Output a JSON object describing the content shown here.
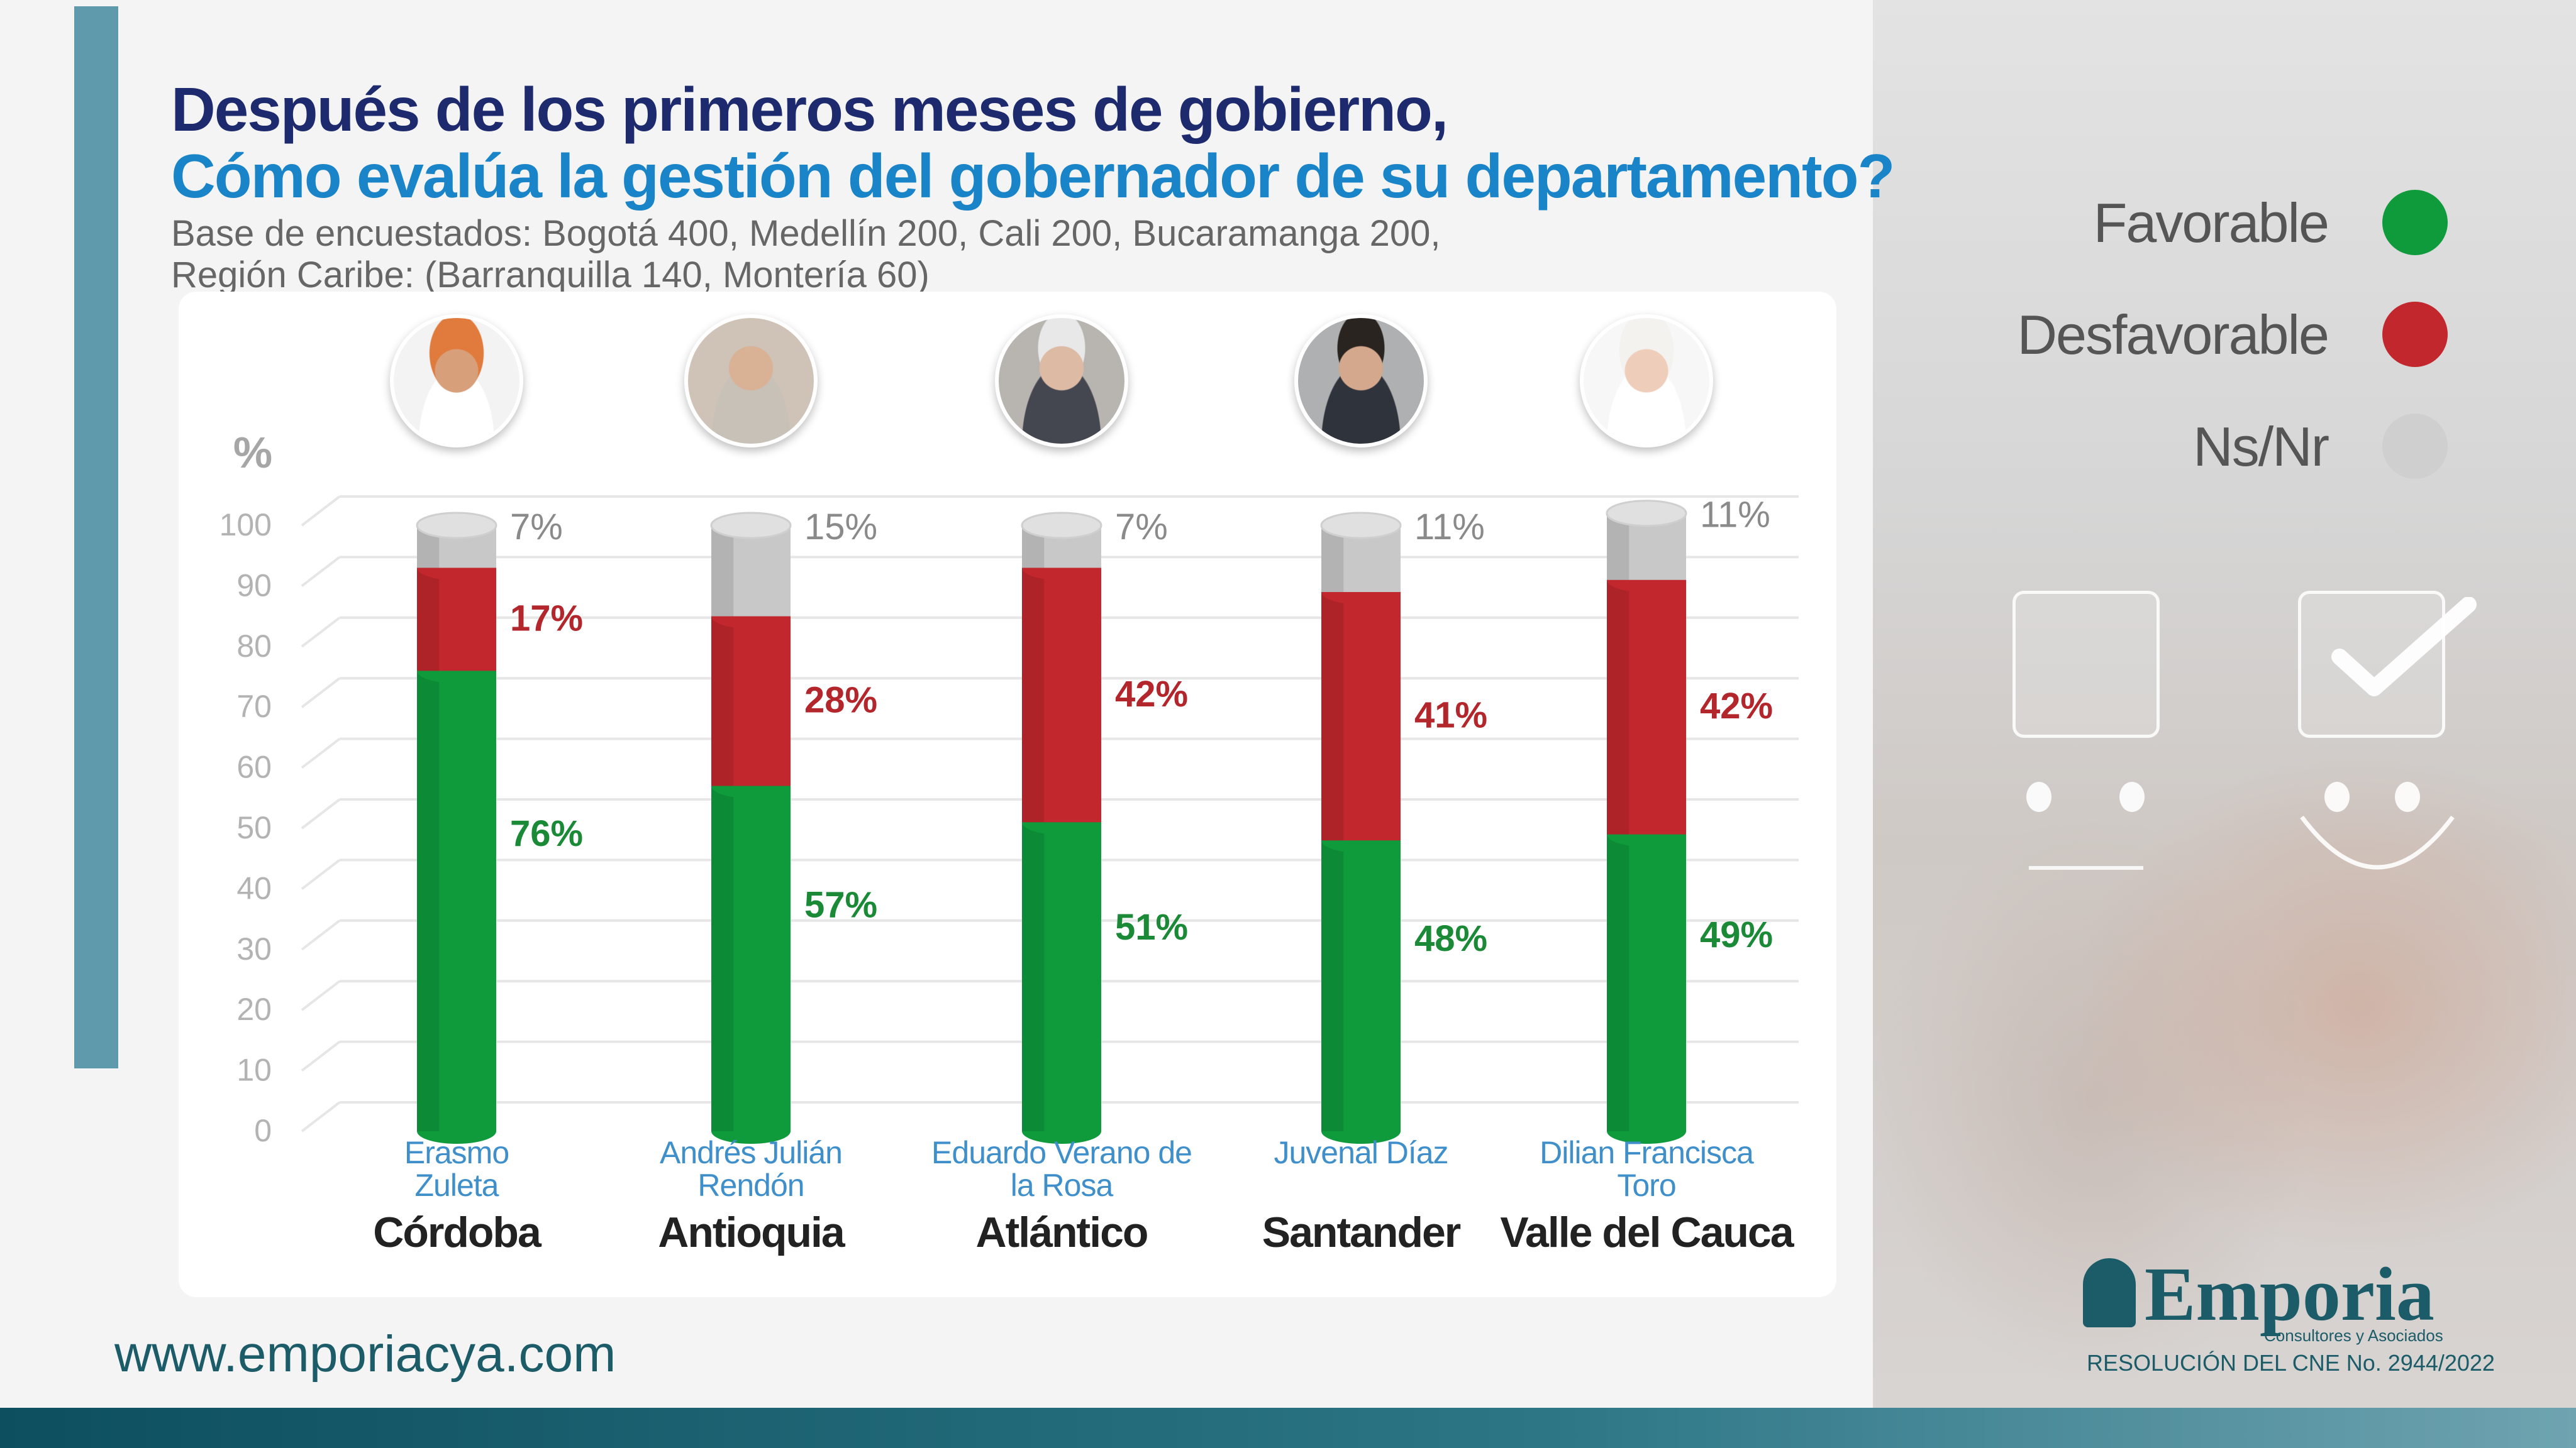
{
  "title": {
    "line1": "Después de los primeros meses de gobierno,",
    "line2": "Cómo evalúa la gestión del gobernador de su departamento?"
  },
  "subtitle": {
    "line1": "Base de encuestados: Bogotá 400, Medellín 200, Cali 200, Bucaramanga 200,",
    "line2": "Región Caribe: (Barranquilla 140, Montería 60)"
  },
  "legend": [
    {
      "label": "Favorable",
      "color": "#0f9a3c"
    },
    {
      "label": "Desfavorable",
      "color": "#c1272d"
    },
    {
      "label": "Ns/Nr",
      "color": "#c8c8c8"
    }
  ],
  "chart_data": {
    "type": "bar",
    "stacked": true,
    "y_unit_label": "%",
    "ylim": [
      0,
      100
    ],
    "yticks": [
      "0",
      "10",
      "20",
      "30",
      "40",
      "50",
      "60",
      "70",
      "80",
      "90",
      "100"
    ],
    "grid": true,
    "legend_position": "right",
    "categories": [
      {
        "name": "Erasmo\nZuleta",
        "department": "Córdoba"
      },
      {
        "name": "Andrés Julián\nRendón",
        "department": "Antioquia"
      },
      {
        "name": "Eduardo Verano de\nla Rosa",
        "department": "Atlántico"
      },
      {
        "name": "Juvenal Díaz",
        "department": "Santander"
      },
      {
        "name": "Dilian Francisca\nToro",
        "department": "Valle del Cauca"
      }
    ],
    "series": [
      {
        "name": "Favorable",
        "color": "#0f9a3c",
        "label_color": "#1a8a37",
        "values": [
          76,
          57,
          51,
          48,
          49
        ],
        "labels": [
          "76%",
          "57%",
          "51%",
          "48%",
          "49%"
        ]
      },
      {
        "name": "Desfavorable",
        "color": "#c1272d",
        "label_color": "#b3262b",
        "values": [
          17,
          28,
          42,
          41,
          42
        ],
        "labels": [
          "17%",
          "28%",
          "42%",
          "41%",
          "42%"
        ]
      },
      {
        "name": "Ns/Nr",
        "color": "#c8c8c8",
        "label_color": "#8a8a8a",
        "values": [
          7,
          15,
          7,
          11,
          11
        ],
        "labels": [
          "7%",
          "15%",
          "7%",
          "11%",
          "11%"
        ]
      }
    ]
  },
  "footer": {
    "website": "www.emporiacya.com",
    "brand": "Emporia",
    "brand_sub": "Consultores y Asociados",
    "resolution": "RESOLUCIÓN DEL CNE No. 2944/2022"
  }
}
